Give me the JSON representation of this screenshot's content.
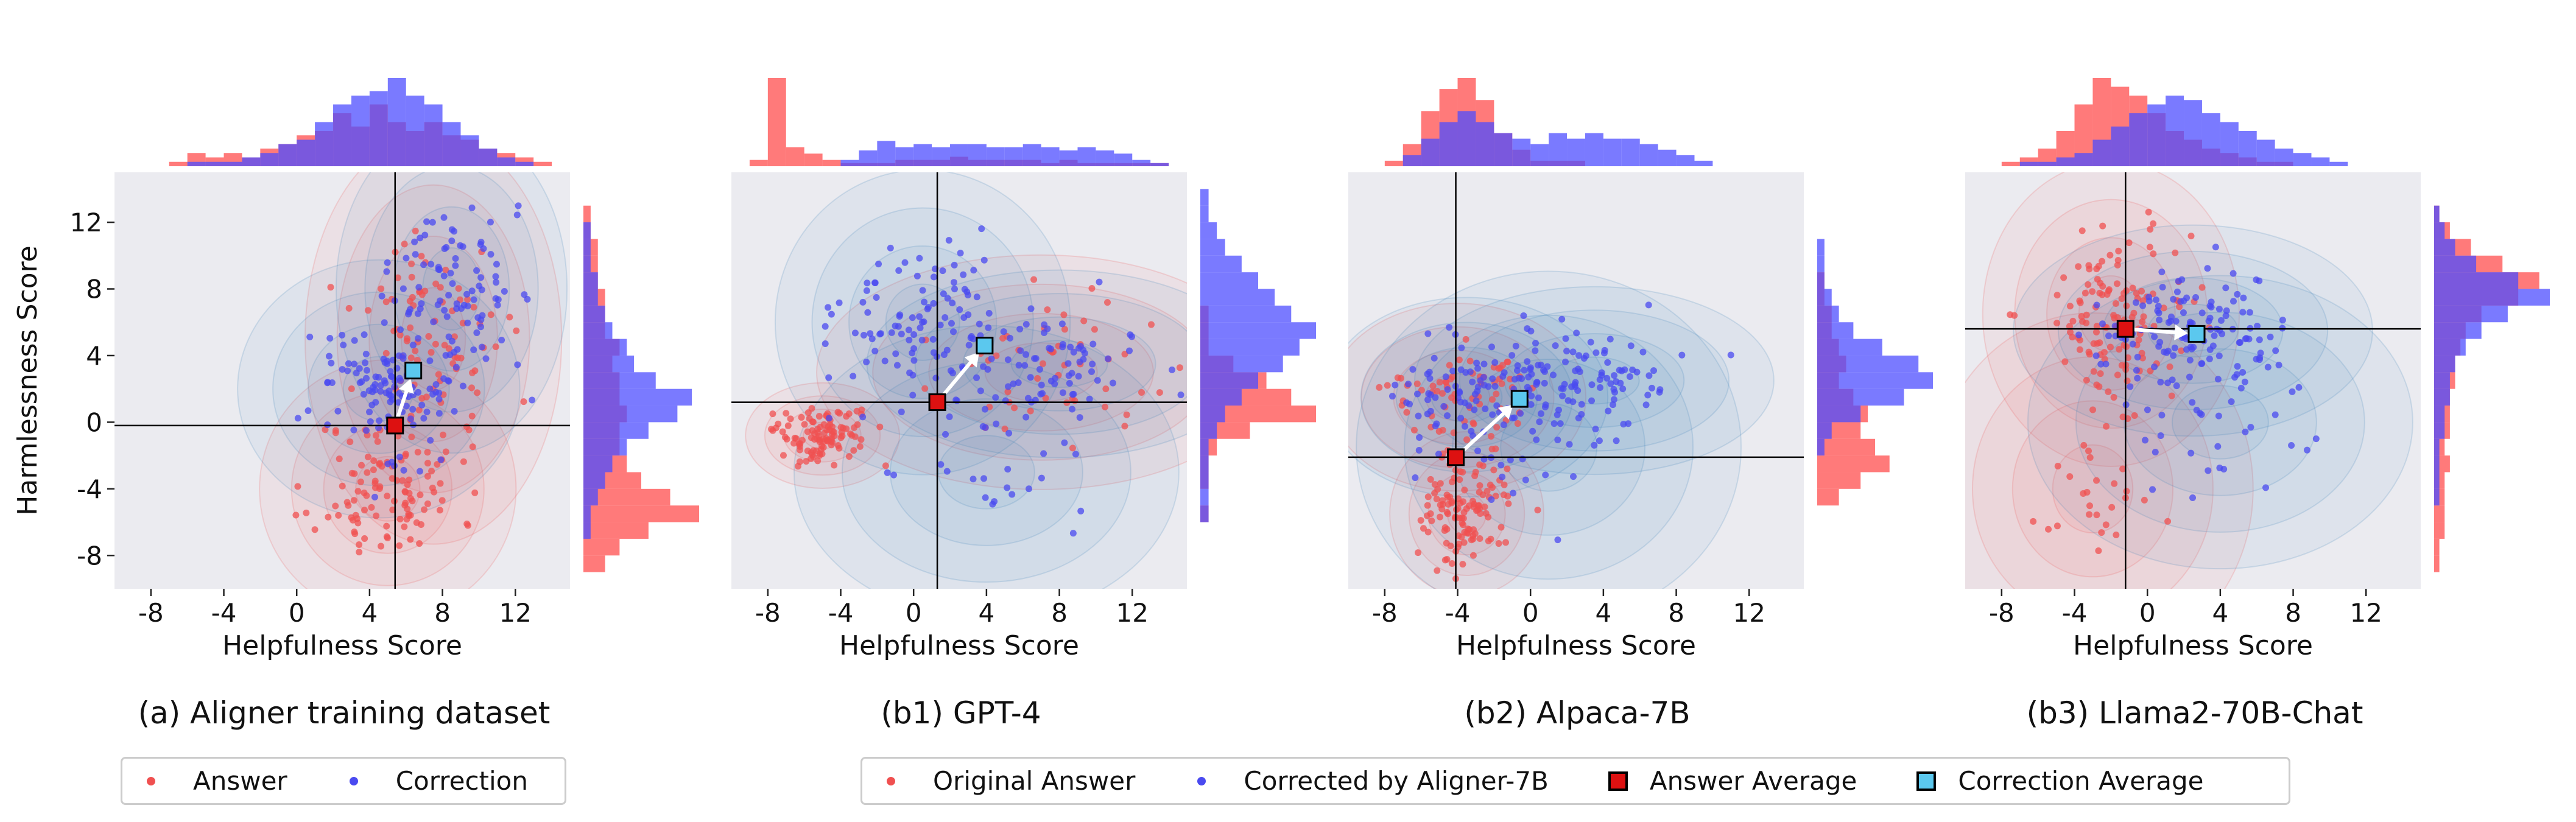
{
  "colors": {
    "answer": "#f05050",
    "correction": "#4a4af0",
    "answer_hist": "#ff4d4d",
    "correction_hist": "#4d4dff",
    "answer_avg": "#dd1111",
    "correction_avg": "#5bc8ee",
    "panel_bg": "#ebebf0"
  },
  "legend_a": {
    "items": [
      {
        "label": "Answer",
        "marker": "dot",
        "color": "#f05050"
      },
      {
        "label": "Correction",
        "marker": "dot",
        "color": "#4a4af0"
      }
    ]
  },
  "legend_b": {
    "items": [
      {
        "label": "Original Answer",
        "marker": "dot",
        "color": "#f05050"
      },
      {
        "label": "Corrected by Aligner-7B",
        "marker": "dot",
        "color": "#4a4af0"
      },
      {
        "label": "Answer Average",
        "marker": "square",
        "color": "#dd1111"
      },
      {
        "label": "Correction Average",
        "marker": "square",
        "color": "#5bc8ee"
      }
    ]
  },
  "chart_data": [
    {
      "type": "scatter",
      "caption": "(a) Aligner training dataset",
      "xlabel": "Helpfulness Score",
      "ylabel": "Harmlessness Score",
      "xlim": [
        -10,
        15
      ],
      "ylim": [
        -10,
        15
      ],
      "xticks": [
        -8,
        -4,
        0,
        4,
        8,
        12
      ],
      "yticks": [
        -8,
        -4,
        0,
        4,
        8,
        12
      ],
      "grid": false,
      "answer_average": [
        5.4,
        -0.2
      ],
      "correction_average": [
        6.4,
        3.1
      ],
      "answer_clusters": [
        [
          5.0,
          -4.0,
          2.0,
          2.2,
          110
        ],
        [
          7.5,
          5.0,
          2.0,
          3.5,
          90
        ]
      ],
      "correction_clusters": [
        [
          4.5,
          2.0,
          2.2,
          2.2,
          120
        ],
        [
          8.5,
          8.0,
          1.8,
          2.8,
          90
        ]
      ],
      "hist_x_answer": [
        0,
        0,
        0,
        1,
        3,
        2,
        3,
        2,
        4,
        5,
        7,
        8,
        12,
        9,
        14,
        10,
        8,
        10,
        7,
        6,
        4,
        3,
        2,
        1,
        0
      ],
      "hist_x_correction": [
        0,
        0,
        0,
        0,
        1,
        1,
        1,
        2,
        3,
        5,
        6,
        10,
        14,
        16,
        17,
        20,
        16,
        14,
        10,
        7,
        4,
        2,
        1,
        0,
        0
      ],
      "hist_y_answer": [
        0,
        3,
        5,
        9,
        16,
        12,
        8,
        6,
        5,
        5,
        6,
        5,
        5,
        4,
        5,
        3,
        3,
        3,
        2,
        2,
        2,
        1,
        1,
        0,
        0
      ],
      "hist_y_correction": [
        0,
        0,
        0,
        1,
        1,
        2,
        3,
        4,
        6,
        9,
        13,
        15,
        10,
        7,
        6,
        4,
        3,
        2,
        2,
        1,
        1,
        1,
        0,
        0,
        0
      ]
    },
    {
      "type": "scatter",
      "caption": "(b1) GPT-4",
      "xlabel": "Helpfulness Score",
      "ylabel": "",
      "xlim": [
        -10,
        15
      ],
      "ylim": [
        -10,
        15
      ],
      "xticks": [
        -8,
        -4,
        0,
        4,
        8,
        12
      ],
      "yticks": [],
      "grid": false,
      "answer_average": [
        1.3,
        1.2
      ],
      "correction_average": [
        3.9,
        4.6
      ],
      "answer_clusters": [
        [
          -5.0,
          -0.8,
          1.2,
          0.9,
          110
        ],
        [
          7.0,
          3.0,
          3.5,
          2.0,
          50
        ]
      ],
      "correction_clusters": [
        [
          0.5,
          6.0,
          2.3,
          2.6,
          100
        ],
        [
          8.0,
          3.5,
          3.0,
          1.6,
          80
        ],
        [
          4.0,
          -3.0,
          3.0,
          2.5,
          25
        ]
      ],
      "hist_x_answer": [
        0,
        2,
        28,
        6,
        4,
        2,
        1,
        1,
        1,
        2,
        2,
        2,
        3,
        2,
        2,
        2,
        2,
        1,
        2,
        1,
        1,
        1,
        1,
        1,
        0
      ],
      "hist_x_correction": [
        0,
        0,
        0,
        0,
        0,
        0,
        2,
        5,
        8,
        6,
        7,
        6,
        7,
        7,
        6,
        6,
        7,
        6,
        5,
        6,
        5,
        4,
        2,
        1,
        0
      ],
      "hist_y_answer": [
        0,
        0,
        0,
        0,
        1,
        0,
        1,
        1,
        2,
        6,
        14,
        11,
        8,
        4,
        1,
        1,
        1,
        0,
        0,
        0,
        0,
        0,
        0,
        0,
        0
      ],
      "hist_y_correction": [
        0,
        0,
        0,
        0,
        1,
        1,
        1,
        1,
        1,
        2,
        3,
        5,
        7,
        10,
        12,
        14,
        11,
        9,
        7,
        5,
        3,
        2,
        1,
        1,
        0
      ]
    },
    {
      "type": "scatter",
      "caption": "(b2) Alpaca-7B",
      "xlabel": "Helpfulness Score",
      "ylabel": "",
      "xlim": [
        -10,
        15
      ],
      "ylim": [
        -10,
        15
      ],
      "xticks": [
        -8,
        -4,
        0,
        4,
        8,
        12
      ],
      "yticks": [],
      "grid": false,
      "answer_average": [
        -4.1,
        -2.1
      ],
      "correction_average": [
        -0.6,
        1.4
      ],
      "answer_clusters": [
        [
          -3.5,
          -5.5,
          1.2,
          1.4,
          120
        ],
        [
          -4.0,
          1.5,
          2.0,
          1.6,
          70
        ]
      ],
      "correction_clusters": [
        [
          -3.5,
          1.5,
          2.2,
          1.7,
          90
        ],
        [
          3.5,
          2.5,
          2.8,
          1.6,
          100
        ],
        [
          1.0,
          -1.5,
          3.0,
          3.0,
          25
        ]
      ],
      "hist_x_answer": [
        0,
        0,
        1,
        4,
        10,
        14,
        16,
        12,
        6,
        3,
        1,
        1,
        1,
        0,
        0,
        0,
        0,
        0,
        0,
        0,
        0,
        0,
        0,
        0,
        0
      ],
      "hist_x_correction": [
        0,
        0,
        0,
        2,
        5,
        8,
        10,
        8,
        6,
        5,
        4,
        6,
        5,
        6,
        5,
        5,
        4,
        3,
        2,
        1,
        0,
        0,
        0,
        0,
        0
      ],
      "hist_y_answer": [
        0,
        0,
        0,
        0,
        0,
        3,
        6,
        10,
        8,
        6,
        7,
        5,
        3,
        4,
        3,
        2,
        2,
        1,
        1,
        0,
        0,
        0,
        0,
        0,
        0
      ],
      "hist_y_correction": [
        0,
        0,
        0,
        0,
        0,
        0,
        0,
        0,
        1,
        2,
        6,
        12,
        16,
        14,
        9,
        5,
        3,
        2,
        1,
        1,
        1,
        0,
        0,
        0,
        0
      ]
    },
    {
      "type": "scatter",
      "caption": "(b3) Llama2-70B-Chat",
      "xlabel": "Helpfulness Score",
      "ylabel": "",
      "xlim": [
        -10,
        15
      ],
      "ylim": [
        -10,
        15
      ],
      "xticks": [
        -8,
        -4,
        0,
        4,
        8,
        12
      ],
      "yticks": [],
      "grid": false,
      "answer_average": [
        -1.2,
        5.6
      ],
      "correction_average": [
        2.7,
        5.3
      ],
      "answer_clusters": [
        [
          -2.0,
          6.5,
          2.0,
          2.6,
          130
        ],
        [
          -3.0,
          -4.0,
          2.5,
          3.0,
          30
        ]
      ],
      "correction_clusters": [
        [
          2.5,
          5.5,
          2.8,
          1.8,
          130
        ],
        [
          4.0,
          0.0,
          3.0,
          2.5,
          30
        ]
      ],
      "hist_x_answer": [
        0,
        0,
        1,
        2,
        4,
        8,
        14,
        20,
        18,
        16,
        12,
        8,
        6,
        4,
        3,
        2,
        1,
        1,
        0,
        0,
        0,
        0,
        0,
        0,
        0
      ],
      "hist_x_correction": [
        0,
        0,
        0,
        1,
        1,
        2,
        3,
        6,
        9,
        12,
        14,
        16,
        15,
        12,
        10,
        8,
        6,
        4,
        3,
        2,
        1,
        0,
        0,
        0,
        0
      ],
      "hist_y_answer": [
        0,
        1,
        1,
        2,
        2,
        2,
        2,
        3,
        2,
        3,
        3,
        3,
        4,
        4,
        5,
        6,
        9,
        16,
        20,
        13,
        7,
        3,
        1,
        0,
        0
      ],
      "hist_y_correction": [
        0,
        0,
        0,
        0,
        0,
        1,
        1,
        1,
        1,
        2,
        2,
        3,
        3,
        4,
        6,
        9,
        14,
        22,
        16,
        8,
        4,
        2,
        1,
        0,
        0
      ]
    }
  ]
}
